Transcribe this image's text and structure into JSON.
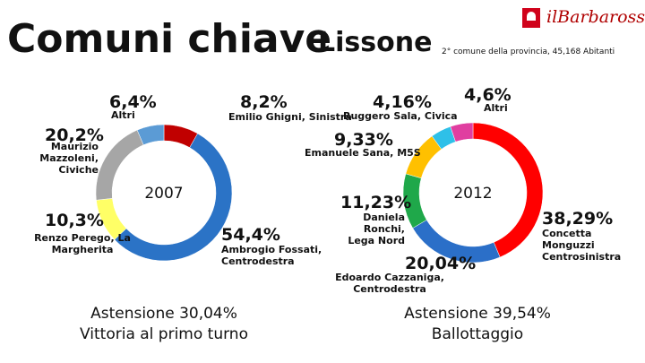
{
  "title": "Comuni chiave",
  "city": "Lissone",
  "subtitle": "2° comune della provincia, 45,168 Abitanti",
  "logo": "ilBarbarossa",
  "chart_data": [
    {
      "type": "donut",
      "center_label": "2007",
      "categories": [
        "Emilio Ghigni, Sinistra",
        "Ambrogio Fossati,\nCentrodestra",
        "Renzo Perego, La\nMargherita",
        "Maurizio\nMazzoleni, Civiche",
        "Altri"
      ],
      "values": [
        8.2,
        54.4,
        10.3,
        20.2,
        6.4
      ],
      "value_labels": [
        "8,2%",
        "54,4%",
        "10,3%",
        "20,2%",
        "6,4%"
      ],
      "colors": [
        "#c00000",
        "#2b73c6",
        "#ffff66",
        "#a6a6a6",
        "#5b9bd5"
      ],
      "footer": [
        "Astensione 30,04%",
        "Vittoria al primo turno"
      ]
    },
    {
      "type": "donut",
      "center_label": "2012",
      "categories": [
        "Concetta Monguzzi\nCentrosinistra",
        "Edoardo Cazzaniga,\nCentrodestra",
        "Daniela Ronchi,\nLega Nord",
        "Emanuele Sana, M5S",
        "Ruggero Sala, Civica",
        "Altri"
      ],
      "values": [
        38.29,
        20.04,
        11.23,
        9.33,
        4.16,
        4.6
      ],
      "value_labels": [
        "38,29%",
        "20,04%",
        "11,23%",
        "9,33%",
        "4,16%",
        "4,6%"
      ],
      "colors": [
        "#ff0000",
        "#2b6fc8",
        "#1fa84a",
        "#ffc000",
        "#2ec0e8",
        "#e03ea0"
      ],
      "footer": [
        "Astensione 39,54%",
        "Ballottaggio"
      ]
    }
  ]
}
